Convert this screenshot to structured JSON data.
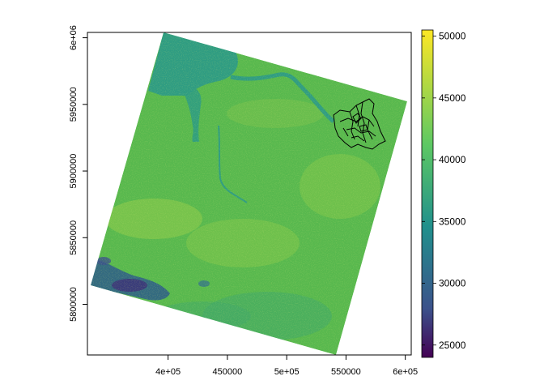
{
  "map": {
    "x_axis": {
      "ticks": [
        "4e+05",
        "450000",
        "5e+05",
        "550000",
        "6e+05"
      ],
      "values": [
        400000,
        450000,
        500000,
        550000,
        600000
      ],
      "range": [
        332000,
        605000
      ]
    },
    "y_axis": {
      "ticks": [
        "5800000",
        "5850000",
        "5900000",
        "5950000",
        "6e+06"
      ],
      "values": [
        5800000,
        5850000,
        5900000,
        5950000,
        6000000
      ],
      "range": [
        5762000,
        6004000
      ]
    },
    "colorbar": {
      "ticks": [
        "25000",
        "30000",
        "35000",
        "40000",
        "45000",
        "50000"
      ],
      "values": [
        25000,
        30000,
        35000,
        40000,
        45000,
        50000
      ],
      "range": [
        24000,
        50500
      ],
      "palette": "viridis",
      "colors": [
        "#440154",
        "#3b528b",
        "#21908c",
        "#5dc863",
        "#fde725"
      ]
    },
    "raster": {
      "dominant_color": "#57b84e",
      "water_color": "#2a9a7a",
      "low_color": "#2c4c86"
    },
    "overlay": {
      "stroke": "#000000"
    }
  }
}
